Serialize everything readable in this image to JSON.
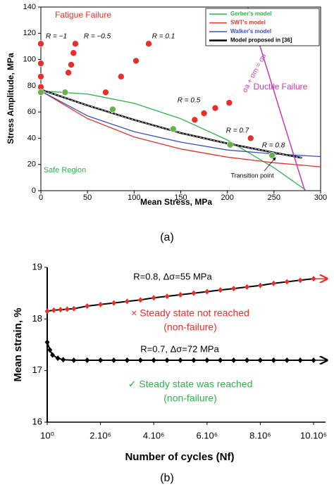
{
  "chart_data": [
    {
      "type": "scatter",
      "xlabel": "Mean Stress, MPa",
      "ylabel": "Stress Amplitude, MPa",
      "caption": "(a)",
      "xlim": [
        0,
        300
      ],
      "ylim": [
        0,
        140
      ],
      "xticks": [
        0,
        50,
        100,
        150,
        200,
        250,
        300
      ],
      "yticks": [
        0,
        20,
        40,
        60,
        80,
        100,
        120,
        140
      ],
      "legend": "upper right",
      "series": [
        {
          "name": "Gerber's model",
          "color": "#2db34a",
          "x": [
            0,
            50,
            100,
            150,
            200,
            250,
            285
          ],
          "values": [
            76,
            73.7,
            66.6,
            54.9,
            38.6,
            17.5,
            0
          ]
        },
        {
          "name": "SWT's model",
          "color": "#e8302a",
          "x": [
            0,
            50,
            100,
            150,
            200,
            250,
            300
          ],
          "values": [
            76,
            55,
            41,
            31.8,
            25.6,
            21.3,
            18.2
          ]
        },
        {
          "name": "Walker's model",
          "color": "#3a4fc4",
          "x": [
            0,
            50,
            100,
            150,
            200,
            250,
            300
          ],
          "values": [
            76,
            57,
            45,
            37,
            31,
            28,
            26
          ]
        },
        {
          "name": "Model proposed in [36]",
          "color": "#000000",
          "x": [
            0,
            50,
            100,
            150,
            200,
            250,
            280
          ],
          "values": [
            77,
            65,
            54,
            44,
            36,
            29,
            25
          ]
        }
      ],
      "points": [
        {
          "color": "#e8302a",
          "x": [
            0,
            0,
            0,
            0,
            29.5,
            32.5,
            35,
            37,
            69.5,
            86,
            102,
            115.6,
            165,
            175,
            187,
            202,
            225
          ],
          "values": [
            112,
            97,
            87,
            79,
            90,
            96,
            105,
            112,
            75,
            87,
            99,
            112,
            54,
            59,
            63,
            67,
            40
          ]
        },
        {
          "color": "#6ab04c",
          "x": [
            0,
            26,
            77,
            142,
            203,
            248
          ],
          "values": [
            75,
            75,
            62,
            47,
            35,
            27
          ]
        }
      ],
      "ductile_line": {
        "color": "#c43ab3",
        "x": [
          222,
          283
        ],
        "values": [
          140,
          0
        ]
      },
      "annotations": [
        "Fatigue Failure",
        "Ductile Failure",
        "Safe Region",
        "R = −1",
        "R = −0.5",
        "R = 0.1",
        "R = 0.5",
        "R = 0.7",
        "R = 0.8",
        "Transition point",
        "σa + σm = σu"
      ]
    },
    {
      "type": "line",
      "xlabel": "Number of cycles (Nf)",
      "ylabel": "Mean strain, %",
      "caption": "(b)",
      "xlim": [
        0,
        10000000
      ],
      "ylim": [
        16,
        19
      ],
      "xticks": [
        {
          "value": 1,
          "label": "10⁰"
        },
        {
          "value": 2000000,
          "label": "2.10⁶"
        },
        {
          "value": 4000000,
          "label": "4.10⁶"
        },
        {
          "value": 6000000,
          "label": "6.10⁶"
        },
        {
          "value": 8000000,
          "label": "8.10⁶"
        },
        {
          "value": 10000000,
          "label": "10.10⁶"
        }
      ],
      "yticks": [
        16,
        17,
        18,
        19
      ],
      "series": [
        {
          "line_color": "#000000",
          "marker_color": "#e8302a",
          "x": [
            0,
            250000,
            500000,
            750000,
            1000000,
            1500000,
            2000000,
            2500000,
            3000000,
            3500000,
            4000000,
            4500000,
            5000000,
            5500000,
            6000000,
            6500000,
            7000000,
            7500000,
            8000000,
            8500000,
            9000000,
            9500000,
            10000000
          ],
          "values": [
            18.15,
            18.17,
            18.18,
            18.19,
            18.2,
            18.25,
            18.28,
            18.31,
            18.34,
            18.37,
            18.41,
            18.44,
            18.47,
            18.5,
            18.53,
            18.56,
            18.59,
            18.62,
            18.65,
            18.69,
            18.72,
            18.75,
            18.78
          ]
        },
        {
          "line_color": "#000000",
          "marker_color": "#000000",
          "x": [
            0,
            100000,
            200000,
            400000,
            600000,
            1000000,
            1500000,
            2000000,
            2500000,
            3000000,
            3500000,
            4000000,
            4500000,
            5000000,
            5500000,
            6000000,
            6500000,
            7000000,
            7500000,
            8000000,
            8500000,
            9000000,
            9500000,
            10000000
          ],
          "values": [
            17.55,
            17.4,
            17.3,
            17.24,
            17.21,
            17.2,
            17.2,
            17.2,
            17.2,
            17.2,
            17.2,
            17.2,
            17.2,
            17.2,
            17.2,
            17.2,
            17.2,
            17.2,
            17.2,
            17.2,
            17.2,
            17.2,
            17.2,
            17.2
          ]
        }
      ],
      "annotations": [
        "R=0.8, Δσ=55 MPa",
        "×  Steady state not reached",
        "(non-failure)",
        "R=0.7, Δσ=72 MPa",
        "✓  Steady state was reached",
        "(non-failure)"
      ]
    }
  ]
}
